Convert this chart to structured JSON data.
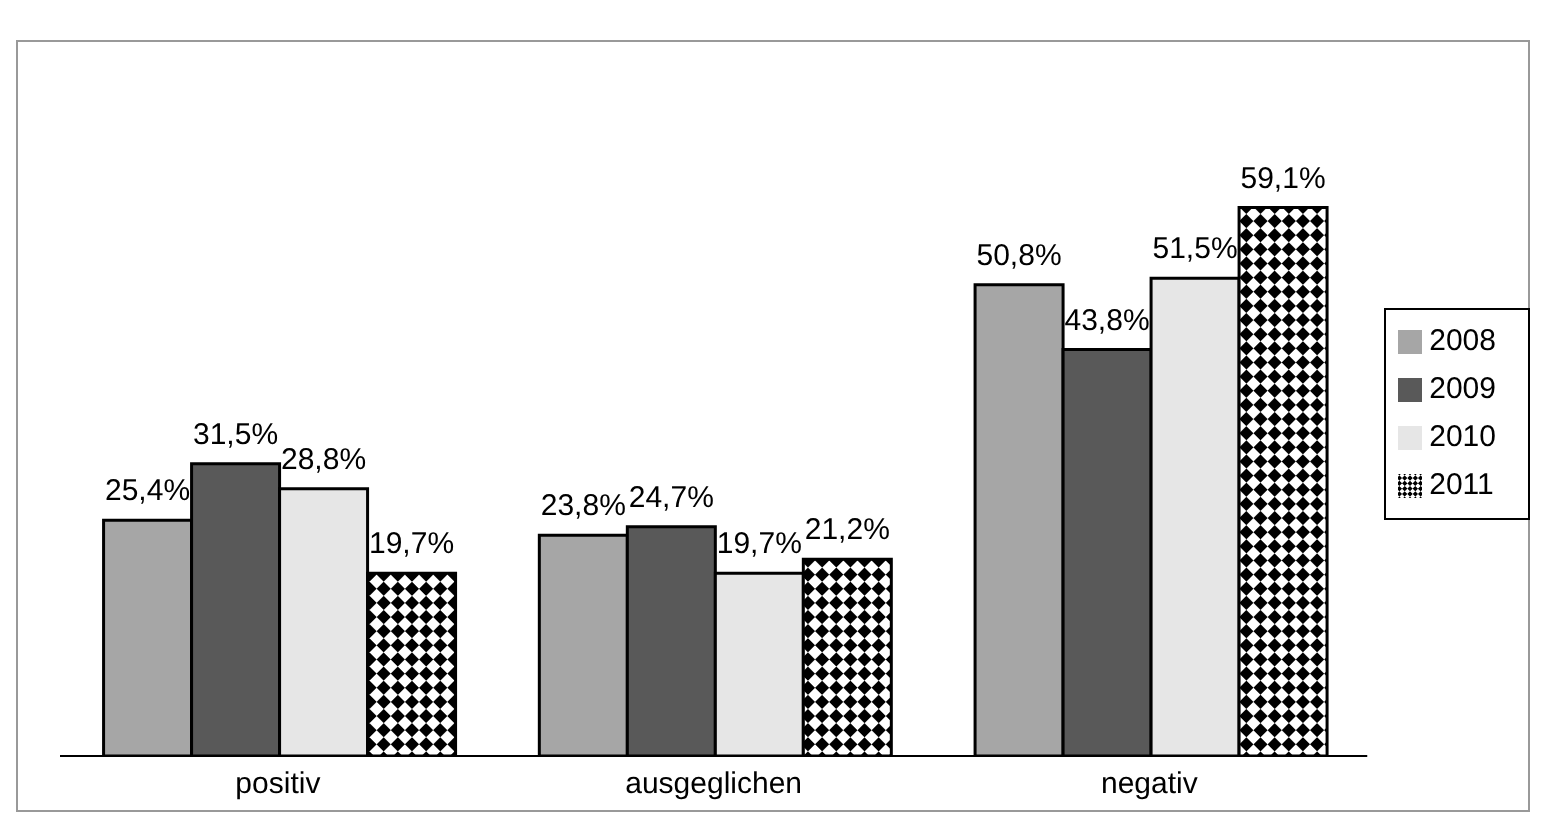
{
  "chart_data": {
    "type": "bar",
    "categories": [
      "positiv",
      "ausgeglichen",
      "negativ"
    ],
    "series": [
      {
        "name": "2008",
        "color": "#a6a6a6",
        "values": [
          25.4,
          23.8,
          50.8
        ],
        "value_labels": [
          "25,4%",
          "23,8%",
          "50,8%"
        ]
      },
      {
        "name": "2009",
        "color": "#595959",
        "values": [
          31.5,
          24.7,
          43.8
        ],
        "value_labels": [
          "31,5%",
          "24,7%",
          "43,8%"
        ]
      },
      {
        "name": "2010",
        "color": "#e6e6e6",
        "values": [
          28.8,
          19.7,
          51.5
        ],
        "value_labels": [
          "28,8%",
          "19,7%",
          "51,5%"
        ]
      },
      {
        "name": "2011",
        "color": "#000000",
        "values": [
          19.7,
          21.2,
          59.1
        ],
        "value_labels": [
          "19,7%",
          "21,2%",
          "59,1%"
        ]
      }
    ],
    "tick_labels": "x",
    "grid": false,
    "legend": "right"
  }
}
